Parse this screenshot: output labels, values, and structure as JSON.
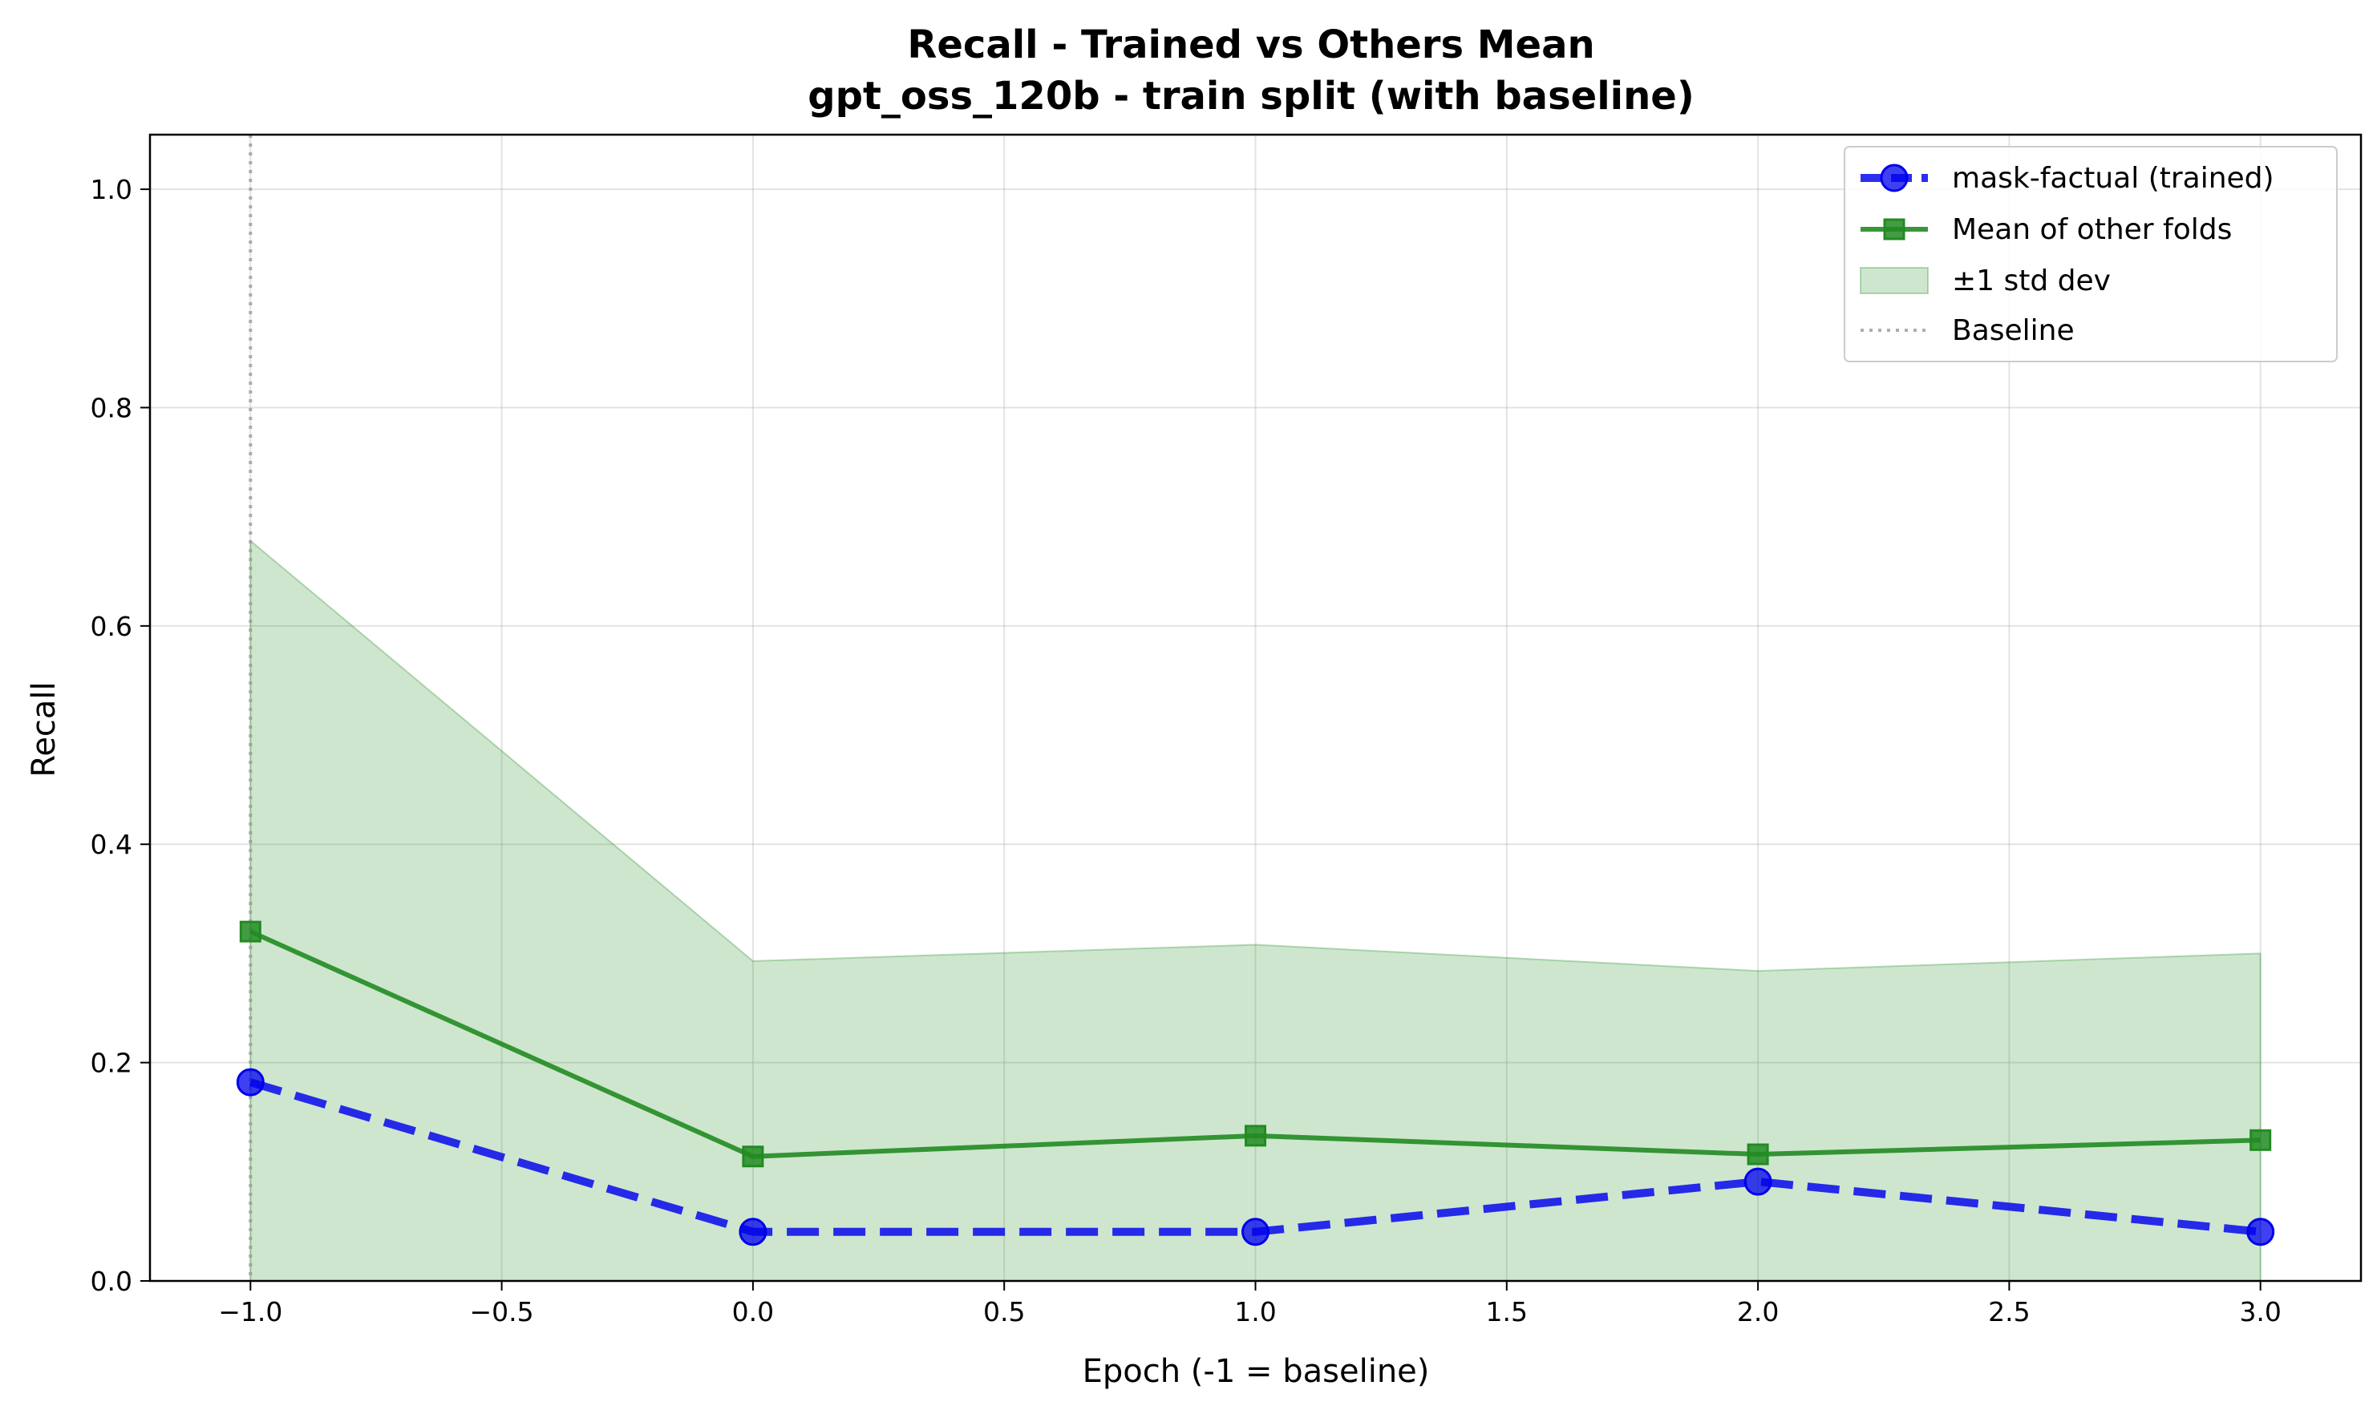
{
  "chart_data": {
    "type": "line",
    "title": "Recall - Trained vs Others Mean",
    "subtitle": "gpt_oss_120b - train split (with baseline)",
    "xlabel": "Epoch (-1 = baseline)",
    "ylabel": "Recall",
    "xlim": [
      -1.2,
      3.2
    ],
    "ylim": [
      0.0,
      1.05
    ],
    "x_ticks": [
      -1.0,
      -0.5,
      0.0,
      0.5,
      1.0,
      1.5,
      2.0,
      2.5,
      3.0
    ],
    "x_tick_labels": [
      "−1.0",
      "−0.5",
      "0.0",
      "0.5",
      "1.0",
      "1.5",
      "2.0",
      "2.5",
      "3.0"
    ],
    "y_ticks": [
      0.0,
      0.2,
      0.4,
      0.6,
      0.8,
      1.0
    ],
    "y_tick_labels": [
      "0.0",
      "0.2",
      "0.4",
      "0.6",
      "0.8",
      "1.0"
    ],
    "grid": true,
    "legend_position": "top-right",
    "baseline_x": -1.0,
    "x": [
      -1,
      0,
      1,
      2,
      3
    ],
    "series": [
      {
        "name": "mask-factual (trained)",
        "kind": "line",
        "color": "#0000ee",
        "line_style": "dashed",
        "marker": "circle",
        "values": [
          0.182,
          0.045,
          0.045,
          0.091,
          0.045
        ]
      },
      {
        "name": "Mean of other folds",
        "kind": "line",
        "color": "#228b22",
        "line_style": "solid",
        "marker": "square",
        "values": [
          0.32,
          0.114,
          0.133,
          0.116,
          0.129
        ]
      }
    ],
    "band": {
      "name": "±1 std dev",
      "color": "#228b22",
      "upper": [
        0.678,
        0.293,
        0.308,
        0.284,
        0.3
      ],
      "lower": [
        0.0,
        0.0,
        0.0,
        0.0,
        0.0
      ]
    },
    "baseline_legend": {
      "name": "Baseline",
      "color": "#999999"
    }
  }
}
